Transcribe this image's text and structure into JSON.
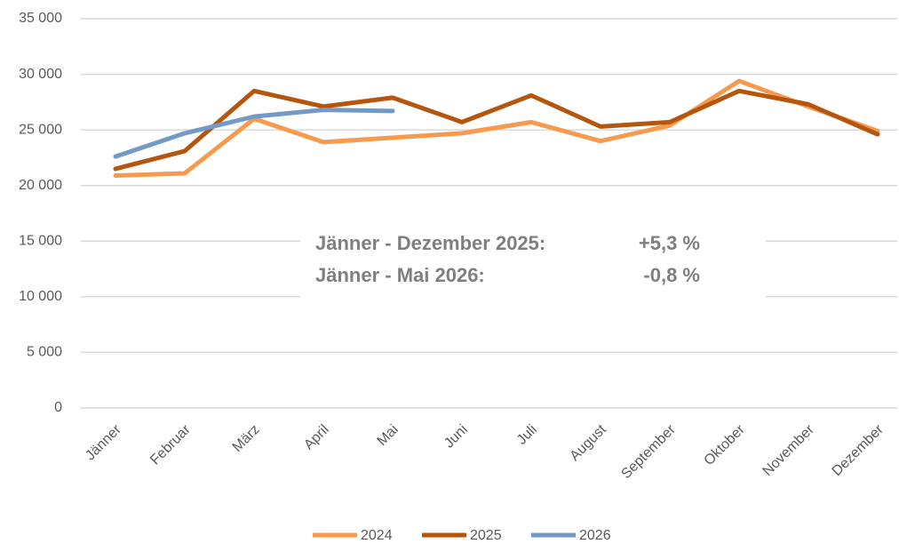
{
  "chart_data": {
    "type": "line",
    "categories": [
      "Jänner",
      "Februar",
      "März",
      "April",
      "Mai",
      "Juni",
      "Juli",
      "August",
      "September",
      "Oktober",
      "November",
      "Dezember"
    ],
    "series": [
      {
        "name": "2024",
        "color": "#f79a4d",
        "values": [
          20900,
          21100,
          26000,
          23900,
          24300,
          24700,
          25700,
          24000,
          25400,
          29400,
          27100,
          24900
        ]
      },
      {
        "name": "2025",
        "color": "#b5560f",
        "values": [
          21500,
          23100,
          28500,
          27100,
          27900,
          25700,
          28100,
          25300,
          25700,
          28500,
          27300,
          24600
        ]
      },
      {
        "name": "2026",
        "color": "#7399c6",
        "values": [
          22600,
          24700,
          26200,
          26800,
          26700,
          null,
          null,
          null,
          null,
          null,
          null,
          null
        ]
      }
    ],
    "ylim": [
      0,
      35000
    ],
    "yticks": [
      0,
      {
        "value": 5000,
        "label": "5 000"
      },
      {
        "value": 10000,
        "label": "10 000"
      },
      {
        "value": 15000,
        "label": "15 000"
      },
      {
        "value": 20000,
        "label": "20 000"
      },
      {
        "value": 25000,
        "label": "25 000"
      },
      {
        "value": 30000,
        "label": "30 000"
      },
      {
        "value": 35000,
        "label": "35 000"
      }
    ],
    "grid": true,
    "annotations": [
      {
        "label": "Jänner - Dezember 2025:",
        "text": "+5,3 %"
      },
      {
        "label": "Jänner - Mai 2026:",
        "text": "-0,8 %"
      }
    ]
  }
}
